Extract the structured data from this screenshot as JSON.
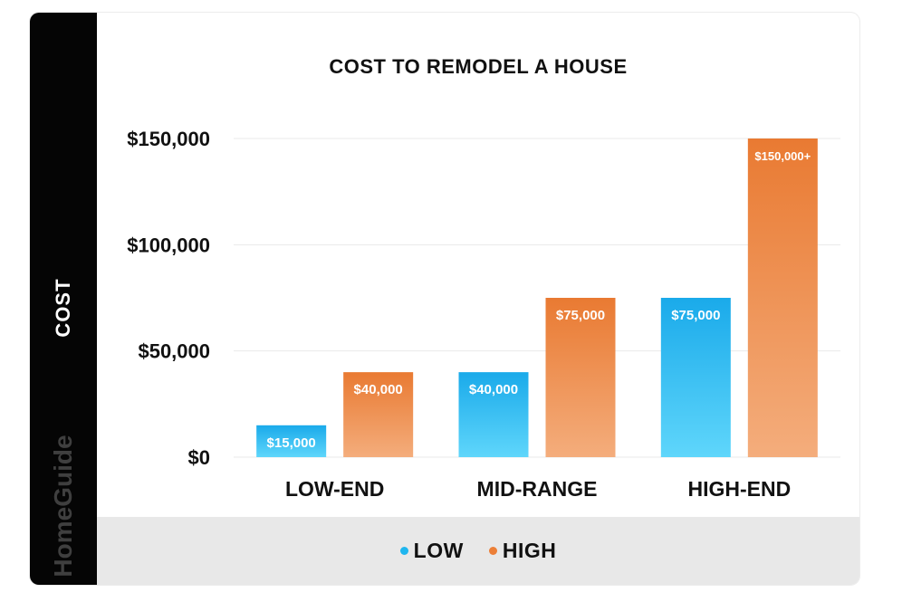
{
  "side_label": "COST",
  "brand": "HomeGuide",
  "colors": {
    "low": "#1fb6ef",
    "high": "#ec7f37",
    "side": "#050505",
    "legend_bg": "#e8e8e8"
  },
  "chart_data": {
    "type": "bar",
    "title": "COST TO REMODEL A HOUSE",
    "xlabel": "",
    "ylabel": "COST",
    "categories": [
      "LOW-END",
      "MID-RANGE",
      "HIGH-END"
    ],
    "series": [
      {
        "name": "LOW",
        "values": [
          15000,
          40000,
          75000
        ],
        "labels": [
          "$15,000",
          "$40,000",
          "$75,000"
        ]
      },
      {
        "name": "HIGH",
        "values": [
          40000,
          75000,
          150000
        ],
        "labels": [
          "$40,000",
          "$75,000",
          "$150,000+"
        ]
      }
    ],
    "ylim": [
      0,
      150000
    ],
    "yticks": [
      0,
      50000,
      100000,
      150000
    ],
    "ytick_labels": [
      "$0",
      "$50,000",
      "$100,000",
      "$150,000"
    ],
    "grid": true,
    "legend": "bottom"
  }
}
